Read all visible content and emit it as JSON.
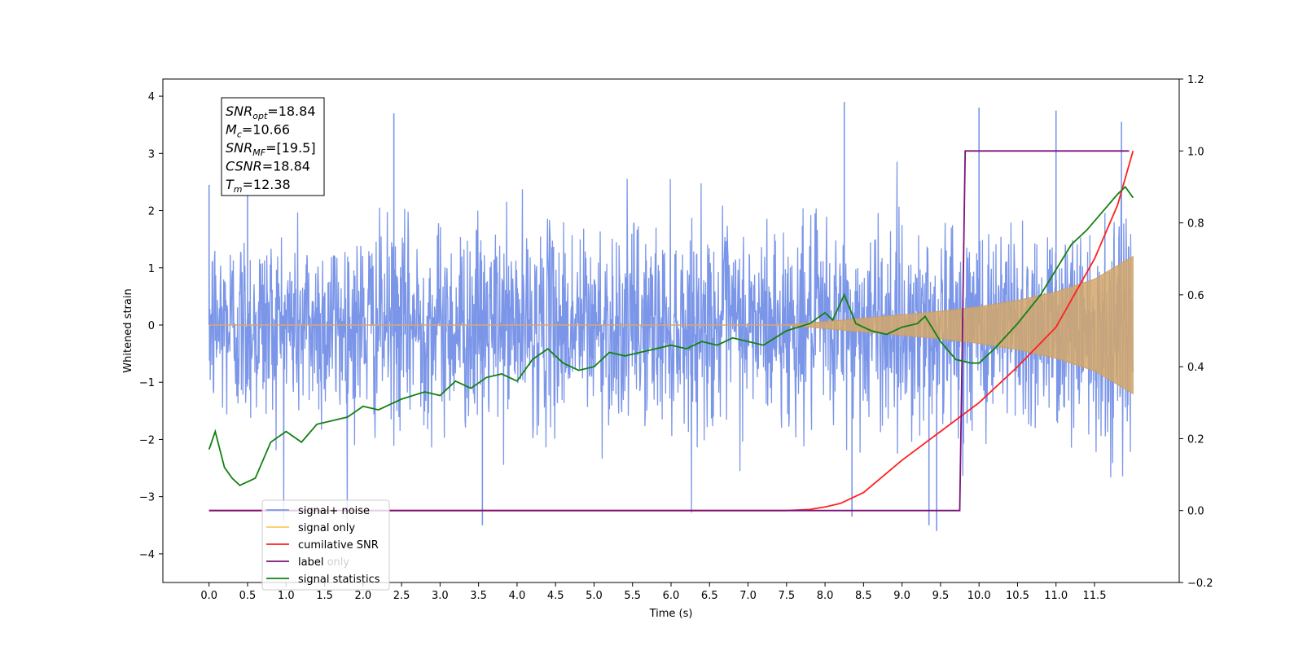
{
  "chart_data": {
    "type": "line",
    "xlabel": "Time (s)",
    "ylabel": "Whitened strain",
    "xlim": [
      -0.6,
      12.6
    ],
    "ylim_left": [
      -4.5,
      4.3
    ],
    "ylim_right": [
      -0.2,
      1.2
    ],
    "x_ticks": [
      "0.0",
      "0.5",
      "1.0",
      "1.5",
      "2.0",
      "2.5",
      "3.0",
      "3.5",
      "4.0",
      "4.5",
      "5.0",
      "5.5",
      "6.0",
      "6.5",
      "7.0",
      "7.5",
      "8.0",
      "8.5",
      "9.0",
      "9.5",
      "10.0",
      "10.5",
      "11.0",
      "11.5"
    ],
    "y_ticks_left": [
      "4",
      "3",
      "2",
      "1",
      "0",
      "−1",
      "−2",
      "−3",
      "−4"
    ],
    "y_ticks_right": [
      "1.2",
      "1.0",
      "0.8",
      "0.6",
      "0.4",
      "0.2",
      "0.0",
      "−0.2"
    ],
    "grid": false,
    "legend_position": "lower-left",
    "legend": [
      {
        "label": "signal+ noise",
        "color": "#7b96e8"
      },
      {
        "label": "signal only",
        "color": "#ffc860"
      },
      {
        "label": "cumilative SNR",
        "color": "#ff2020"
      },
      {
        "label": "label",
        "color": "#7a137a"
      },
      {
        "label": "signal statistics",
        "color": "#138013"
      }
    ],
    "hidden_legend_text": "label only",
    "annotation": [
      {
        "base": "SNR",
        "sub": "opt",
        "value": "=18.84"
      },
      {
        "base": "M",
        "sub": "c",
        "value": "=10.66"
      },
      {
        "base": "SNR",
        "sub": "MF",
        "value": "=[19.5]"
      },
      {
        "base": "CSNR",
        "sub": "",
        "value": "=18.84"
      },
      {
        "base": "T",
        "sub": "m",
        "value": "=12.38"
      }
    ],
    "series": [
      {
        "name": "signal+ noise",
        "axis": "left",
        "color": "#7b96e8",
        "description": "noisy whitened strain, roughly within ±2.5 with spikes to ±3.8",
        "envelope": {
          "x": [
            0,
            12.0
          ],
          "low": [
            -2.5,
            -2.5
          ],
          "high": [
            2.5,
            2.5
          ]
        },
        "peaks": [
          [
            0.0,
            2.45
          ],
          [
            0.5,
            2.9
          ],
          [
            2.4,
            3.7
          ],
          [
            8.25,
            3.9
          ],
          [
            10.0,
            3.8
          ],
          [
            11.0,
            3.75
          ],
          [
            11.85,
            3.55
          ],
          [
            3.55,
            -3.5
          ],
          [
            9.35,
            -3.5
          ],
          [
            9.45,
            -3.6
          ],
          [
            8.35,
            -3.35
          ]
        ]
      },
      {
        "name": "signal only",
        "axis": "left",
        "color": "#d4a76a",
        "description": "chirp signal amplitude envelope, flat near 0 then growing",
        "envelope_x": [
          0,
          7.5,
          8.0,
          8.5,
          9.0,
          9.5,
          10.0,
          10.5,
          11.0,
          11.5,
          12.0
        ],
        "envelope_amp": [
          0.0,
          0.0,
          0.06,
          0.12,
          0.18,
          0.24,
          0.32,
          0.43,
          0.58,
          0.8,
          1.2
        ]
      },
      {
        "name": "cumilative SNR",
        "axis": "right",
        "color": "#ff2020",
        "x": [
          0.0,
          7.0,
          7.5,
          7.8,
          8.0,
          8.2,
          8.5,
          9.0,
          9.5,
          10.0,
          10.5,
          11.0,
          11.5,
          11.8,
          12.0
        ],
        "y": [
          0.0,
          0.0,
          0.0,
          0.003,
          0.01,
          0.02,
          0.05,
          0.14,
          0.22,
          0.3,
          0.4,
          0.51,
          0.7,
          0.85,
          1.0
        ]
      },
      {
        "name": "label",
        "axis": "right",
        "color": "#7a137a",
        "x": [
          0.0,
          9.75,
          9.82,
          11.95
        ],
        "y": [
          0.0,
          0.0,
          1.0,
          1.0
        ]
      },
      {
        "name": "signal statistics",
        "axis": "right",
        "color": "#138013",
        "x": [
          0.0,
          0.08,
          0.2,
          0.3,
          0.4,
          0.6,
          0.8,
          1.0,
          1.2,
          1.4,
          1.6,
          1.8,
          2.0,
          2.2,
          2.5,
          2.8,
          3.0,
          3.2,
          3.4,
          3.6,
          3.8,
          4.0,
          4.2,
          4.4,
          4.6,
          4.8,
          5.0,
          5.2,
          5.4,
          5.6,
          5.8,
          6.0,
          6.2,
          6.4,
          6.6,
          6.8,
          7.0,
          7.2,
          7.5,
          7.8,
          8.0,
          8.1,
          8.25,
          8.4,
          8.6,
          8.8,
          9.0,
          9.2,
          9.3,
          9.5,
          9.7,
          9.9,
          10.0,
          10.2,
          10.5,
          10.8,
          11.0,
          11.2,
          11.4,
          11.6,
          11.8,
          11.9,
          12.0
        ],
        "y": [
          0.17,
          0.22,
          0.12,
          0.09,
          0.07,
          0.09,
          0.19,
          0.22,
          0.19,
          0.24,
          0.25,
          0.26,
          0.29,
          0.28,
          0.31,
          0.33,
          0.32,
          0.36,
          0.34,
          0.37,
          0.38,
          0.36,
          0.42,
          0.45,
          0.41,
          0.39,
          0.4,
          0.44,
          0.43,
          0.44,
          0.45,
          0.46,
          0.45,
          0.47,
          0.46,
          0.48,
          0.47,
          0.46,
          0.5,
          0.52,
          0.55,
          0.53,
          0.6,
          0.52,
          0.5,
          0.49,
          0.51,
          0.52,
          0.54,
          0.47,
          0.42,
          0.41,
          0.41,
          0.45,
          0.52,
          0.6,
          0.67,
          0.74,
          0.78,
          0.83,
          0.88,
          0.9,
          0.87
        ]
      }
    ]
  }
}
